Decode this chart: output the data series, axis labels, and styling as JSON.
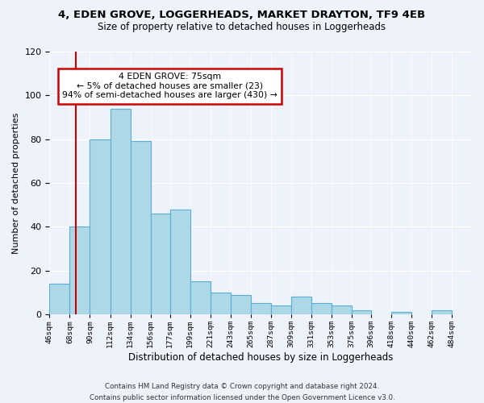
{
  "title_line1": "4, EDEN GROVE, LOGGERHEADS, MARKET DRAYTON, TF9 4EB",
  "title_line2": "Size of property relative to detached houses in Loggerheads",
  "xlabel": "Distribution of detached houses by size in Loggerheads",
  "ylabel": "Number of detached properties",
  "bar_edges": [
    46,
    68,
    90,
    112,
    134,
    156,
    177,
    199,
    221,
    243,
    265,
    287,
    309,
    331,
    353,
    375,
    396,
    418,
    440,
    462,
    484,
    506
  ],
  "bar_heights": [
    14,
    40,
    80,
    94,
    79,
    46,
    48,
    15,
    10,
    9,
    5,
    4,
    8,
    5,
    4,
    2,
    0,
    1,
    0,
    2,
    0
  ],
  "bar_color": "#add8e6",
  "bar_edge_color": "#5baed4",
  "vline_x": 75,
  "vline_color": "#cc0000",
  "ylim": [
    0,
    120
  ],
  "yticks": [
    0,
    20,
    40,
    60,
    80,
    100,
    120
  ],
  "tick_labels": [
    "46sqm",
    "68sqm",
    "90sqm",
    "112sqm",
    "134sqm",
    "156sqm",
    "177sqm",
    "199sqm",
    "221sqm",
    "243sqm",
    "265sqm",
    "287sqm",
    "309sqm",
    "331sqm",
    "353sqm",
    "375sqm",
    "396sqm",
    "418sqm",
    "440sqm",
    "462sqm",
    "484sqm"
  ],
  "annotation_title": "4 EDEN GROVE: 75sqm",
  "annotation_line1": "← 5% of detached houses are smaller (23)",
  "annotation_line2": "94% of semi-detached houses are larger (430) →",
  "annotation_box_color": "#ffffff",
  "annotation_box_edge": "#cc0000",
  "footer_line1": "Contains HM Land Registry data © Crown copyright and database right 2024.",
  "footer_line2": "Contains public sector information licensed under the Open Government Licence v3.0.",
  "bg_color": "#eef2fa"
}
